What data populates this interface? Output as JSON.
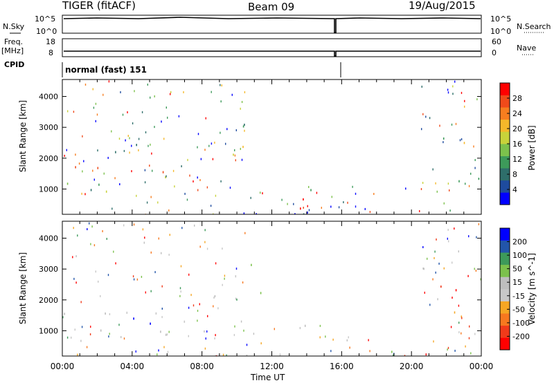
{
  "header": {
    "radar": "TIGER (fitACF)",
    "beam": "Beam 09",
    "date": "19/Aug/2015"
  },
  "summary": {
    "nsky_label": "N.Sky",
    "nsky_ticks": [
      "10^5",
      "10^0"
    ],
    "nsearch_label": "N.Search",
    "nsearch_ticks": [
      "10^5",
      "10^0"
    ],
    "freq_label": "Freq.",
    "freq_unit": "[MHz]",
    "freq_ticks": [
      "18",
      "8"
    ],
    "nave_label": "Nave",
    "nave_ticks": [
      "60",
      "0"
    ],
    "cpid_label": "CPID",
    "cpid_text": "normal (fast) 151"
  },
  "chart_data": [
    {
      "type": "heatmap",
      "title": "",
      "ylabel": "Slant Range [km]",
      "xlabel": "",
      "xlim": [
        "00:00",
        "24:00"
      ],
      "ylim": [
        180,
        4550
      ],
      "yticks": [
        "1000",
        "2000",
        "3000",
        "4000"
      ],
      "colorbar": {
        "label": "Power [dB]",
        "ticks": [
          "28",
          "24",
          "20",
          "16",
          "12",
          "8",
          "4"
        ],
        "range": [
          0,
          32
        ],
        "colors": [
          "#0000ff",
          "#1e4b9e",
          "#2e6e6a",
          "#3d9a5a",
          "#7cc14c",
          "#c8d23a",
          "#f5b82a",
          "#f77d1f",
          "#f04a1a",
          "#ff0000"
        ]
      },
      "regions": [
        {
          "t": [
            0.0,
            7.5
          ],
          "r": [
            1200,
            1850
          ],
          "value": 22
        },
        {
          "t": [
            0.5,
            8.0
          ],
          "r": [
            900,
            1200
          ],
          "value": 14
        },
        {
          "t": [
            0.5,
            4.5
          ],
          "r": [
            1950,
            2500
          ],
          "value": 12
        },
        {
          "t": [
            8.5,
            10.5
          ],
          "r": [
            2000,
            3200
          ],
          "value": 14
        },
        {
          "t": [
            9.5,
            12.0
          ],
          "r": [
            1800,
            2300
          ],
          "value": 16
        },
        {
          "t": [
            13.0,
            15.5
          ],
          "r": [
            250,
            1100
          ],
          "value": 26
        },
        {
          "t": [
            13.0,
            15.0
          ],
          "r": [
            800,
            1200
          ],
          "value": 14
        },
        {
          "t": [
            16.2,
            16.8
          ],
          "r": [
            2800,
            3300
          ],
          "value": 16
        },
        {
          "t": [
            21.5,
            24.0
          ],
          "r": [
            2300,
            3000
          ],
          "value": 18
        },
        {
          "t": [
            21.0,
            24.0
          ],
          "r": [
            1200,
            1700
          ],
          "value": 8
        },
        {
          "t": [
            0.0,
            24.0
          ],
          "r": [
            200,
            380
          ],
          "value": 6
        }
      ]
    },
    {
      "type": "heatmap",
      "title": "",
      "ylabel": "Slant Range [km]",
      "xlabel": "Time UT",
      "xlim": [
        "00:00",
        "24:00"
      ],
      "ylim": [
        180,
        4550
      ],
      "xticks": [
        "00:00",
        "04:00",
        "08:00",
        "12:00",
        "16:00",
        "20:00",
        "00:00"
      ],
      "yticks": [
        "1000",
        "2000",
        "3000",
        "4000"
      ],
      "colorbar": {
        "label": "Velocity [m s^-1]",
        "ticks": [
          "200",
          "100",
          "50",
          "15",
          "-15",
          "-50",
          "-100",
          "-200"
        ],
        "range": [
          -250,
          250
        ],
        "colors": [
          "#ff0000",
          "#f03a1a",
          "#f7781f",
          "#f5a623",
          "#c8c8c8",
          "#bebebe",
          "#7cc14c",
          "#3d9a5a",
          "#2255aa",
          "#0000ff"
        ]
      },
      "regions": [
        {
          "t": [
            0.0,
            7.5
          ],
          "r": [
            1200,
            1850
          ],
          "value": 0
        },
        {
          "t": [
            3.0,
            6.5
          ],
          "r": [
            1200,
            1700
          ],
          "value": 220
        },
        {
          "t": [
            0.5,
            8.0
          ],
          "r": [
            900,
            1200
          ],
          "value": -40
        },
        {
          "t": [
            0.8,
            1.4
          ],
          "r": [
            2100,
            2500
          ],
          "value": -220
        },
        {
          "t": [
            8.5,
            12.0
          ],
          "r": [
            1800,
            3200
          ],
          "value": 0
        },
        {
          "t": [
            13.0,
            15.5
          ],
          "r": [
            400,
            1200
          ],
          "value": 0
        },
        {
          "t": [
            16.2,
            16.8
          ],
          "r": [
            2800,
            3300
          ],
          "value": 0
        },
        {
          "t": [
            21.5,
            24.0
          ],
          "r": [
            2300,
            2900
          ],
          "value": -220
        },
        {
          "t": [
            21.0,
            24.0
          ],
          "r": [
            1200,
            1700
          ],
          "value": 0
        },
        {
          "t": [
            0.0,
            24.0
          ],
          "r": [
            200,
            380
          ],
          "value": -20
        }
      ]
    }
  ]
}
